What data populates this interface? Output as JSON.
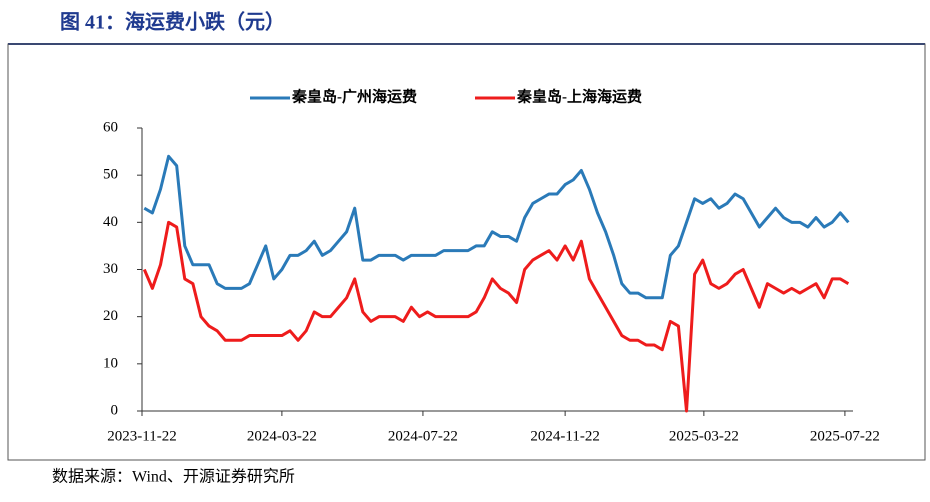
{
  "chart_data": {
    "type": "line",
    "title": "图 41：海运费小跌（元）",
    "source": "数据来源：Wind、开源证券研究所",
    "x": [
      "2023-11-24",
      "2023-12-01",
      "2023-12-08",
      "2023-12-15",
      "2023-12-22",
      "2023-12-29",
      "2024-01-05",
      "2024-01-12",
      "2024-01-19",
      "2024-01-26",
      "2024-02-02",
      "2024-02-09",
      "2024-02-16",
      "2024-02-23",
      "2024-03-01",
      "2024-03-08",
      "2024-03-15",
      "2024-03-22",
      "2024-03-29",
      "2024-04-05",
      "2024-04-12",
      "2024-04-19",
      "2024-04-26",
      "2024-05-03",
      "2024-05-10",
      "2024-05-17",
      "2024-05-24",
      "2024-05-31",
      "2024-06-07",
      "2024-06-14",
      "2024-06-21",
      "2024-06-28",
      "2024-07-05",
      "2024-07-12",
      "2024-07-19",
      "2024-07-26",
      "2024-08-02",
      "2024-08-09",
      "2024-08-16",
      "2024-08-23",
      "2024-08-30",
      "2024-09-06",
      "2024-09-13",
      "2024-09-20",
      "2024-09-27",
      "2024-10-04",
      "2024-10-11",
      "2024-10-18",
      "2024-10-25",
      "2024-11-01",
      "2024-11-08",
      "2024-11-15",
      "2024-11-22",
      "2024-11-29",
      "2024-12-06",
      "2024-12-13",
      "2024-12-20",
      "2024-12-27",
      "2025-01-03",
      "2025-01-10",
      "2025-01-17",
      "2025-01-24",
      "2025-01-31",
      "2025-02-07",
      "2025-02-14",
      "2025-02-21",
      "2025-02-28",
      "2025-03-07",
      "2025-03-14",
      "2025-03-21",
      "2025-03-28",
      "2025-04-04",
      "2025-04-11",
      "2025-04-18",
      "2025-04-25",
      "2025-05-02",
      "2025-05-09",
      "2025-05-16",
      "2025-05-23",
      "2025-05-30",
      "2025-06-06",
      "2025-06-13",
      "2025-06-20",
      "2025-06-27",
      "2025-07-04",
      "2025-07-11",
      "2025-07-18",
      "2025-07-25"
    ],
    "series": [
      {
        "name": "秦皇岛-广州海运费",
        "color": "#2a7ab8",
        "values": [
          43,
          42,
          47,
          54,
          52,
          35,
          31,
          31,
          31,
          27,
          26,
          26,
          26,
          27,
          31,
          35,
          28,
          30,
          33,
          33,
          34,
          36,
          33,
          34,
          36,
          38,
          43,
          32,
          32,
          33,
          33,
          33,
          32,
          33,
          33,
          33,
          33,
          34,
          34,
          34,
          34,
          35,
          35,
          38,
          37,
          37,
          36,
          41,
          44,
          45,
          46,
          46,
          48,
          49,
          51,
          47,
          42,
          38,
          33,
          27,
          25,
          25,
          24,
          24,
          24,
          33,
          35,
          40,
          45,
          44,
          45,
          43,
          44,
          46,
          45,
          42,
          39,
          41,
          43,
          41,
          40,
          40,
          39,
          41,
          39,
          40,
          42,
          40
        ]
      },
      {
        "name": "秦皇岛-上海海运费",
        "color": "#ee1c1c",
        "values": [
          30,
          26,
          31,
          40,
          39,
          28,
          27,
          20,
          18,
          17,
          15,
          15,
          15,
          16,
          16,
          16,
          16,
          16,
          17,
          15,
          17,
          21,
          20,
          20,
          22,
          24,
          28,
          21,
          19,
          20,
          20,
          20,
          19,
          22,
          20,
          21,
          20,
          20,
          20,
          20,
          20,
          21,
          24,
          28,
          26,
          25,
          23,
          30,
          32,
          33,
          34,
          32,
          35,
          32,
          36,
          28,
          25,
          22,
          19,
          16,
          15,
          15,
          14,
          14,
          13,
          19,
          18,
          0,
          29,
          32,
          27,
          26,
          27,
          29,
          30,
          26,
          22,
          27,
          26,
          25,
          26,
          25,
          26,
          27,
          24,
          28,
          28,
          27
        ]
      }
    ],
    "xlim": [
      "2023-11-22",
      "2025-07-29"
    ],
    "xticks": [
      "2023-11-22",
      "2024-03-22",
      "2024-07-22",
      "2024-11-22",
      "2025-03-22",
      "2025-07-22"
    ],
    "ylim": [
      0,
      60
    ],
    "yticks": [
      0,
      10,
      20,
      30,
      40,
      50,
      60
    ],
    "grid": false,
    "legend": "top"
  }
}
